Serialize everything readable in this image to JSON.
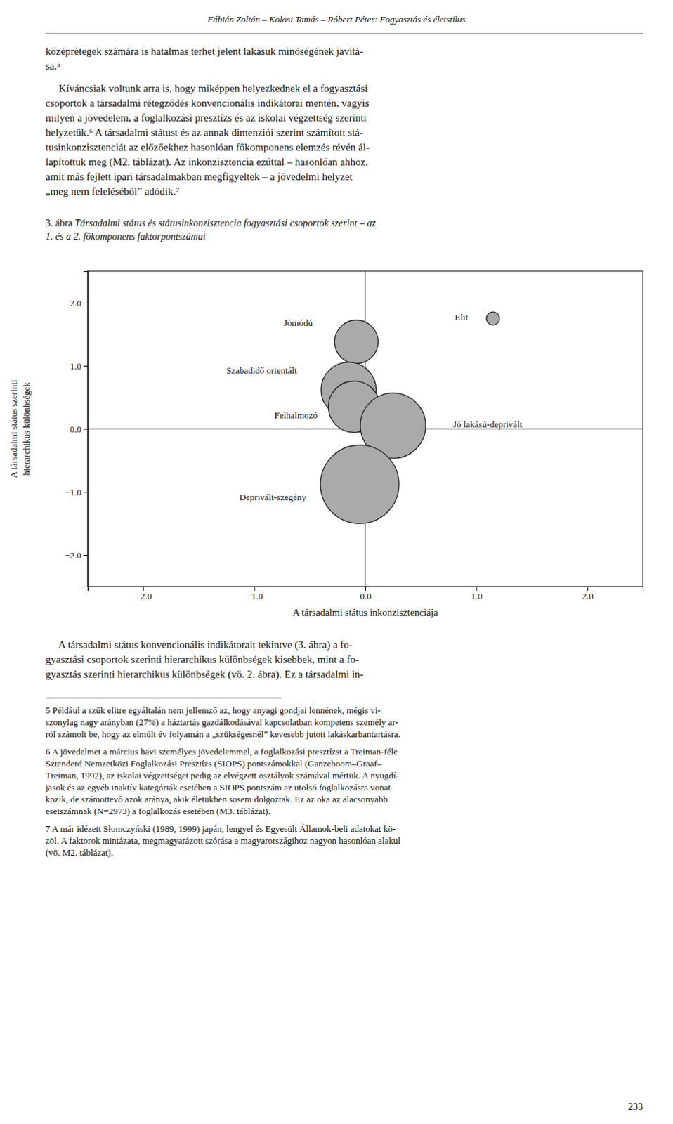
{
  "chart_data": {
    "type": "bubble",
    "xlabel": "A társadalmi státus inkonzisztenciája",
    "ylabel": [
      "A társadalmi státus szerinti",
      "hierarchikus különbségek"
    ],
    "labels": [
      "Elit",
      "Jómódú",
      "Szabadidő orientált",
      "Felhalmozó",
      "Jó lakású-deprivált",
      "Deprivált-szegény"
    ],
    "x": [
      1.15,
      -0.08,
      -0.15,
      -0.1,
      0.25,
      -0.05
    ],
    "values": [
      1.75,
      1.38,
      0.62,
      0.35,
      0.05,
      -0.88
    ],
    "sizes": [
      180,
      2000,
      3200,
      2800,
      4500,
      6500
    ],
    "color": "#aaaaaa",
    "xlim": [
      -2.5,
      2.5
    ],
    "ylim": [
      -2.5,
      2.5
    ],
    "xticks": [
      -2,
      -1,
      0,
      1,
      2
    ],
    "yticks": [
      -2,
      -1,
      0,
      1,
      2
    ],
    "grid": false
  },
  "page": {
    "header": "Fábián Zoltán – Kolosi Tamás – Róbert Péter: Fogyasztás és életstílus",
    "paragraphs": [
      [
        "középrétegek számára is hatalmas terhet jelent lakásuk minőségének javítá-",
        "sa.⁵"
      ],
      [
        "     Kíváncsiak voltunk arra is, hogy miképpen helyezkednek el a fogyasztási",
        "csoportok a társadalmi rétegződés konvencionális indikátorai mentén, vagyis",
        "milyen a jövedelem, a foglalkozási presztízs és az iskolai végzettség szerinti",
        "helyzetük.⁶ A társadalmi státust és az annak dimenziói szerint számított stá-",
        "tusinkonzisztenciát az előzőekhez hasonlóan főkomponens elemzés révén ál-",
        "lapítottuk meg (M2. táblázat). Az inkonzisztencia ezúttal – hasonlóan ahhoz,",
        "amit más fejlett ipari társadalmakban megfigyeltek – a jövedelmi helyzet",
        "„meg nem feleléséből” adódik.⁷"
      ]
    ],
    "caption_prefix": "3. ábra ",
    "caption_lines": [
      "Társadalmi státus és státusinkonzisztencia fogyasztási csoportok szerint – az",
      "1. és a 2. főkomponens faktorpontszámai"
    ],
    "footer": [
      "     A társadalmi státus konvencionális indikátorait tekintve (3. ábra) a fo-",
      "gyasztási csoportok szerinti hierarchikus különbségek kisebbek, mint a fo-",
      "gyasztás szerinti hierarchikus különbségek (vö. 2. ábra). Ez a társadalmi in-"
    ],
    "footnotes": [
      [
        "5 Például a szűk elitre egyáltalán nem jellemző az, hogy anyagi gondjai lennének, mégis vi-",
        "szonylag nagy arányban (27%) a háztartás gazdálkodásával kapcsolatban kompetens személy ar-",
        "ról számolt be, hogy az elmúlt év folyamán a „szükségesnél” kevesebb jutott lakáskarbantartásra."
      ],
      [
        "6 A jövedelmet a március havi személyes jövedelemmel, a foglalkozási presztízst a Treiman-féle",
        "Sztenderd Nemzetközi Foglalkozási Presztízs (SIOPS) pontszámokkal (Ganzeboom–Graaf–",
        "Treiman, 1992), az iskolai végzettséget pedig az elvégzett osztályok számával mértük. A nyugdí-",
        "jasok és az egyéb inaktív kategóriák esetében a SIOPS pontszám az utolsó foglalkozásra vonat-",
        "kozik, de számottevő azok aránya, akik életükben sosem dolgoztak. Ez az oka az alacsonyabb",
        "esetszámnak (N=2973) a foglalkozás esetében (M3. táblázat)."
      ],
      [
        "7 A már idézett Słomczyński (1989, 1999) japán, lengyel és Egyesült Államok-beli adatokat kö-",
        "zöl. A faktorok mintázata, megmagyarázott szórása a magyarországihoz nagyon hasonlóan alakul",
        "(vö. M2. táblázat)."
      ]
    ],
    "page_number": "233"
  }
}
